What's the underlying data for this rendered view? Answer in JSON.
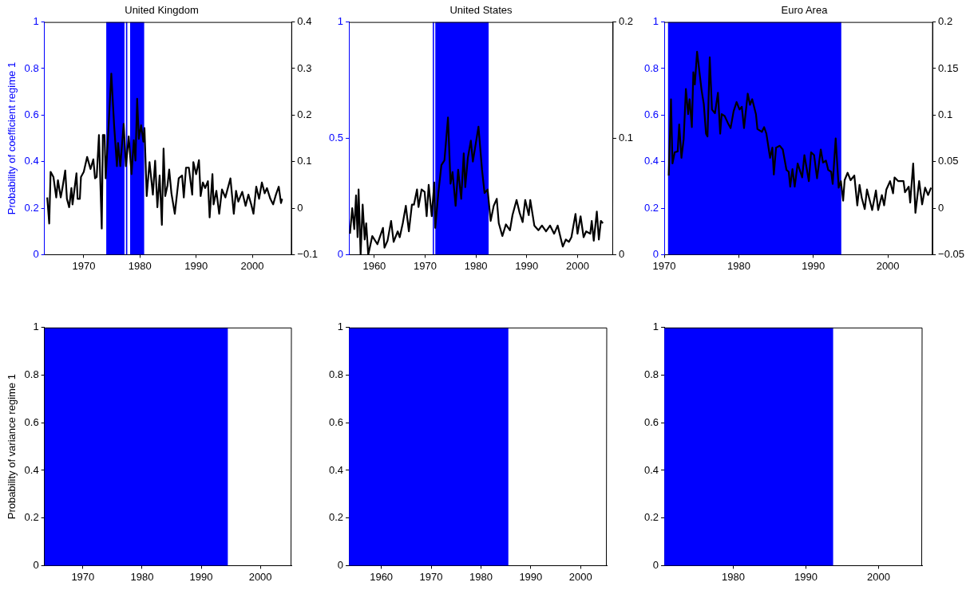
{
  "chart_data": [
    {
      "type": "line",
      "title": "United Kingdom",
      "ylabel": "Probability of coefficient regime 1",
      "xlim": [
        1963,
        2007
      ],
      "xticks": [
        1970,
        1980,
        1990,
        2000
      ],
      "ylim": [
        0,
        1
      ],
      "yticks": [
        0,
        0.2,
        0.4,
        0.6,
        0.8,
        1
      ],
      "y2lim": [
        -0.1,
        0.4
      ],
      "y2ticks": [
        {
          "value": -0.1,
          "label": "−0.1"
        },
        0,
        0.1,
        0.2,
        0.3,
        0.4
      ],
      "grid": false,
      "series": [
        {
          "type": "area",
          "color": "#0000ff",
          "x": [
            1963.5,
            1974,
            1974,
            1977.25,
            1977.25,
            1977.5,
            1977.5,
            1977.75,
            1977.75,
            1978.25,
            1978.25,
            1980.75,
            1980.75,
            2005.25
          ],
          "values": [
            0,
            0,
            1,
            1,
            0,
            0,
            1,
            1,
            0,
            0,
            1,
            1,
            0,
            0
          ]
        },
        {
          "axis": "y2",
          "color": "#000000",
          "x": [
            1963.5,
            1963.85,
            1964.1,
            1964.6,
            1965.1,
            1965.4,
            1965.9,
            1966.2,
            1966.7,
            1967.0,
            1967.4,
            1967.8,
            1968.0,
            1968.7,
            1968.9,
            1969.3,
            1969.5,
            1970.0,
            1970.6,
            1971.2,
            1971.7,
            1972.0,
            1972.3,
            1972.7,
            1973.2,
            1973.4,
            1973.7,
            1973.9,
            1974.3,
            1974.9,
            1975.4,
            1975.9,
            1976.1,
            1976.5,
            1977.1,
            1977.5,
            1978.0,
            1978.5,
            1978.9,
            1979.2,
            1979.5,
            1979.8,
            1980.2,
            1980.6,
            1980.8,
            1981.2,
            1981.7,
            1982.3,
            1982.7,
            1983.1,
            1983.5,
            1983.9,
            1984.2,
            1984.5,
            1984.9,
            1985.2,
            1985.6,
            1986.2,
            1986.9,
            1987.5,
            1987.8,
            1988.2,
            1988.7,
            1989.3,
            1989.5,
            1990.0,
            1990.5,
            1990.8,
            1991.2,
            1991.6,
            1992.1,
            1992.4,
            1992.9,
            1993.1,
            1993.6,
            1994.1,
            1994.6,
            1995.2,
            1996.1,
            1996.7,
            1997.1,
            1997.5,
            1998.2,
            1998.8,
            1999.3,
            1999.8,
            2000.2,
            2000.7,
            2001.2,
            2001.7,
            2002.2,
            2002.6,
            2003.2,
            2003.7,
            2004.2,
            2004.7,
            2005.1,
            2005.3
          ],
          "values": [
            0.023,
            -0.033,
            0.078,
            0.067,
            0.023,
            0.06,
            0.023,
            0.043,
            0.081,
            0.02,
            0.002,
            0.043,
            0.008,
            0.075,
            0.02,
            0.02,
            0.067,
            0.078,
            0.11,
            0.084,
            0.105,
            0.064,
            0.067,
            0.157,
            -0.044,
            0.157,
            0.157,
            0.064,
            0.149,
            0.289,
            0.178,
            0.09,
            0.14,
            0.09,
            0.181,
            0.09,
            0.154,
            0.073,
            0.146,
            0.102,
            0.235,
            0.149,
            0.178,
            0.143,
            0.172,
            0.026,
            0.099,
            0.029,
            0.102,
            0.002,
            0.07,
            -0.036,
            0.128,
            0.026,
            0.049,
            0.083,
            0.032,
            -0.012,
            0.064,
            0.07,
            0.023,
            0.087,
            0.087,
            0.029,
            0.099,
            0.073,
            0.103,
            0.026,
            0.055,
            0.043,
            0.058,
            -0.02,
            0.073,
            0.008,
            0.037,
            -0.012,
            0.04,
            0.023,
            0.064,
            -0.012,
            0.037,
            0.014,
            0.035,
            0.005,
            0.029,
            0.008,
            -0.012,
            0.046,
            0.02,
            0.055,
            0.032,
            0.043,
            0.02,
            0.008,
            0.029,
            0.046,
            0.011,
            0.02
          ]
        }
      ]
    },
    {
      "type": "line",
      "title": "United States",
      "xlim": [
        1955,
        2007
      ],
      "xticks": [
        1960,
        1970,
        1980,
        1990,
        2000
      ],
      "ylim": [
        0,
        1
      ],
      "yticks": [
        0,
        0.5,
        1
      ],
      "y2lim": [
        0,
        0.2
      ],
      "y2ticks": [
        0,
        0.1,
        0.2
      ],
      "grid": false,
      "series": [
        {
          "type": "area",
          "color": "#0000ff",
          "x": [
            1955,
            1971.5,
            1971.5,
            1971.75,
            1971.75,
            1972,
            1972,
            1982.5,
            1982.5,
            2005
          ],
          "values": [
            0,
            0,
            1,
            1,
            0,
            0,
            1,
            1,
            0,
            0
          ]
        },
        {
          "axis": "y2",
          "color": "#000000",
          "x": [
            1955.2,
            1955.65,
            1956.05,
            1956.4,
            1956.7,
            1956.9,
            1957.3,
            1957.7,
            1958.1,
            1958.4,
            1958.8,
            1959.6,
            1960.6,
            1961.7,
            1962.0,
            1962.6,
            1963.3,
            1963.8,
            1964.6,
            1965.0,
            1965.6,
            1966.2,
            1966.8,
            1967.4,
            1967.8,
            1968.4,
            1968.7,
            1969.3,
            1969.9,
            1970.3,
            1970.7,
            1971.3,
            1971.8,
            1972.0,
            1972.6,
            1973.2,
            1973.8,
            1974.5,
            1975.0,
            1975.4,
            1976.0,
            1976.5,
            1977.1,
            1977.6,
            1977.9,
            1978.4,
            1979.0,
            1979.4,
            1980.5,
            1981.2,
            1981.7,
            1982.3,
            1982.9,
            1983.5,
            1984.1,
            1984.5,
            1985.2,
            1985.9,
            1986.7,
            1987.2,
            1988.0,
            1988.6,
            1989.2,
            1989.7,
            1990.4,
            1990.7,
            1991.5,
            1992.3,
            1993.0,
            1993.8,
            1994.6,
            1995.4,
            1996.1,
            1996.7,
            1997.1,
            1997.7,
            1998.3,
            1998.8,
            1999.6,
            2000.0,
            2000.6,
            2001.2,
            2001.7,
            2002.5,
            2002.8,
            2003.2,
            2003.8,
            2004.2,
            2004.6,
            2005.0
          ],
          "values": [
            0.018,
            0.04,
            0.022,
            0.051,
            0.015,
            0.056,
            0,
            0.043,
            0.013,
            0.027,
            0,
            0.016,
            0.009,
            0.023,
            0.006,
            0.012,
            0.029,
            0.011,
            0.02,
            0.015,
            0.027,
            0.042,
            0.02,
            0.043,
            0.043,
            0.056,
            0.041,
            0.056,
            0.054,
            0.033,
            0.06,
            0.033,
            0.062,
            0.023,
            0.053,
            0.077,
            0.081,
            0.118,
            0.061,
            0.071,
            0.042,
            0.073,
            0.048,
            0.087,
            0.058,
            0.083,
            0.098,
            0.08,
            0.11,
            0.073,
            0.053,
            0.056,
            0.029,
            0.042,
            0.048,
            0.027,
            0.016,
            0.026,
            0.021,
            0.034,
            0.047,
            0.036,
            0.028,
            0.047,
            0.034,
            0.047,
            0.025,
            0.021,
            0.025,
            0.02,
            0.025,
            0.018,
            0.025,
            0.014,
            0.007,
            0.013,
            0.011,
            0.015,
            0.035,
            0.018,
            0.033,
            0.015,
            0.02,
            0.018,
            0.029,
            0.012,
            0.037,
            0.013,
            0.029,
            0.027
          ]
        }
      ]
    },
    {
      "type": "line",
      "title": "Euro Area",
      "xlim": [
        1970,
        2006
      ],
      "xticks": [
        1970,
        1980,
        1990,
        2000
      ],
      "ylim": [
        0,
        1
      ],
      "yticks": [
        0,
        0.2,
        0.4,
        0.6,
        0.8,
        1
      ],
      "y2lim": [
        -0.05,
        0.2
      ],
      "y2ticks": [
        {
          "value": -0.05,
          "label": "−0.05"
        },
        0,
        0.05,
        0.1,
        0.15,
        0.2
      ],
      "grid": false,
      "series": [
        {
          "type": "area",
          "color": "#0000ff",
          "x": [
            1970,
            1970.5,
            1970.5,
            1993.75,
            1993.75,
            2005.75
          ],
          "values": [
            0,
            0,
            1,
            1,
            0,
            0
          ]
        },
        {
          "axis": "y2",
          "color": "#000000",
          "x": [
            1970.6,
            1970.9,
            1971.1,
            1971.4,
            1971.8,
            1972.0,
            1972.3,
            1972.6,
            1972.9,
            1973.2,
            1973.4,
            1973.7,
            1973.9,
            1974.1,
            1974.4,
            1975.0,
            1975.3,
            1975.6,
            1975.8,
            1976.1,
            1976.4,
            1976.8,
            1977.2,
            1977.5,
            1977.7,
            1978.1,
            1978.5,
            1978.9,
            1979.3,
            1979.7,
            1980.1,
            1980.4,
            1980.7,
            1981.2,
            1981.5,
            1981.8,
            1982.3,
            1982.5,
            1983.1,
            1983.4,
            1983.7,
            1984.2,
            1984.5,
            1984.7,
            1985.0,
            1985.5,
            1985.9,
            1986.4,
            1986.7,
            1986.9,
            1987.2,
            1987.5,
            1987.9,
            1988.5,
            1988.8,
            1989.4,
            1989.7,
            1990.1,
            1990.5,
            1991.0,
            1991.3,
            1991.7,
            1992.0,
            1992.4,
            1992.6,
            1993.0,
            1993.4,
            1993.7,
            1994.0,
            1994.2,
            1994.6,
            1995.0,
            1995.5,
            1995.9,
            1996.2,
            1996.5,
            1996.9,
            1997.2,
            1997.9,
            1998.4,
            1998.7,
            1999.2,
            1999.5,
            1999.8,
            2000.3,
            2000.7,
            2000.9,
            2001.4,
            2002.1,
            2002.3,
            2002.8,
            2003.0,
            2003.4,
            2003.7,
            2004.2,
            2004.6,
            2005.0,
            2005.4,
            2005.8
          ],
          "values": [
            0.035,
            0.117,
            0.048,
            0.06,
            0.061,
            0.09,
            0.054,
            0.074,
            0.128,
            0.101,
            0.117,
            0.087,
            0.146,
            0.133,
            0.168,
            0.127,
            0.112,
            0.08,
            0.077,
            0.162,
            0.106,
            0.102,
            0.124,
            0.08,
            0.101,
            0.099,
            0.092,
            0.086,
            0.104,
            0.114,
            0.106,
            0.109,
            0.086,
            0.123,
            0.111,
            0.117,
            0.101,
            0.085,
            0.082,
            0.087,
            0.08,
            0.054,
            0.065,
            0.036,
            0.065,
            0.067,
            0.063,
            0.041,
            0.039,
            0.023,
            0.042,
            0.023,
            0.048,
            0.033,
            0.057,
            0.029,
            0.06,
            0.057,
            0.032,
            0.063,
            0.049,
            0.051,
            0.041,
            0.039,
            0.026,
            0.075,
            0.022,
            0.029,
            0.008,
            0.03,
            0.038,
            0.03,
            0.035,
            0.003,
            0.025,
            0.011,
            -0.001,
            0.02,
            -0.002,
            0.019,
            -0.002,
            0.014,
            0.003,
            0.02,
            0.029,
            0.016,
            0.033,
            0.029,
            0.029,
            0.017,
            0.023,
            0.006,
            0.048,
            -0.005,
            0.029,
            0.004,
            0.022,
            0.014,
            0.022
          ]
        }
      ]
    },
    {
      "type": "area",
      "ylabel": "Probability of variance regime 1",
      "xlim": [
        1963.5,
        2005.25
      ],
      "xticks": [
        1970,
        1980,
        1990,
        2000
      ],
      "ylim": [
        0,
        1
      ],
      "yticks": [
        0,
        0.2,
        0.4,
        0.6,
        0.8,
        1
      ],
      "grid": false,
      "series": [
        {
          "color": "#0000ff",
          "x": [
            1963.5,
            1994.5,
            1994.5,
            2005.25
          ],
          "values": [
            1,
            1,
            0,
            0
          ]
        }
      ]
    },
    {
      "type": "area",
      "xlim": [
        1953.5,
        2005.25
      ],
      "xticks": [
        1960,
        1970,
        1980,
        1990,
        2000
      ],
      "ylim": [
        0,
        1
      ],
      "yticks": [
        0,
        0.2,
        0.4,
        0.6,
        0.8,
        1
      ],
      "grid": false,
      "series": [
        {
          "color": "#0000ff",
          "x": [
            1953.5,
            1985.5,
            1985.5,
            2005.25
          ],
          "values": [
            1,
            1,
            0,
            0
          ]
        }
      ]
    },
    {
      "type": "area",
      "xlim": [
        1970.5,
        2006
      ],
      "xticks": [
        1980,
        1990,
        2000
      ],
      "ylim": [
        0,
        1
      ],
      "yticks": [
        0,
        0.2,
        0.4,
        0.6,
        0.8,
        1
      ],
      "grid": false,
      "series": [
        {
          "color": "#0000ff",
          "x": [
            1970.5,
            1993.75,
            1993.75,
            2006
          ],
          "values": [
            1,
            1,
            0,
            0
          ]
        }
      ]
    }
  ]
}
